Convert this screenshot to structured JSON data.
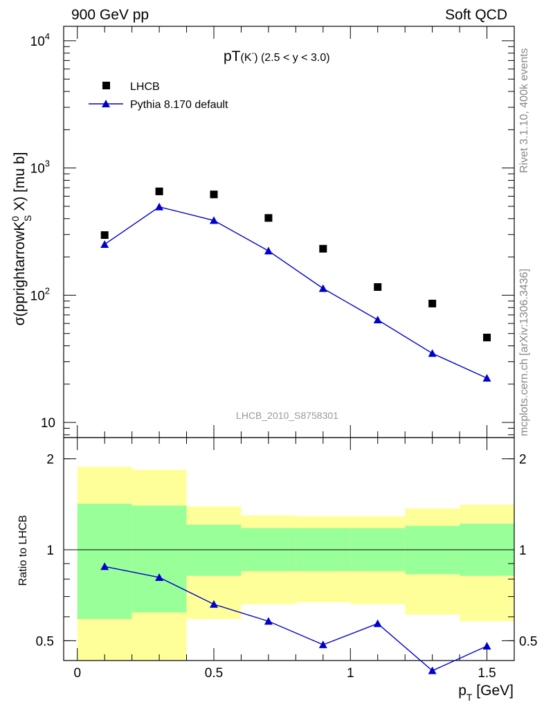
{
  "header": {
    "left": "900 GeV pp",
    "right": "Soft QCD"
  },
  "side_labels": {
    "version": "Rivet 3.1.10,  400k events",
    "source": "mcplots.cern.ch [arXiv:1306.3436]"
  },
  "main_panel": {
    "title_main": "pT",
    "title_particle": "(K",
    "title_particle_sup": "-",
    "title_range": ")  (2.5 < y < 3.0)",
    "ylabel": "σ(pprightarrowK",
    "ylabel_sup": "0",
    "ylabel_sub": "S",
    "ylabel_tail": " X) [mu b]",
    "analysis_id": "LHCB_2010_S8758301",
    "y_ticks": [
      {
        "base": "10",
        "exp": "4"
      },
      {
        "base": "10",
        "exp": "3"
      },
      {
        "base": "10",
        "exp": "2"
      },
      {
        "base": "10",
        "exp": ""
      }
    ]
  },
  "ratio_panel": {
    "ylabel": "Ratio to LHCB",
    "y_ticks": [
      "2",
      "1",
      "0.5"
    ]
  },
  "x_axis": {
    "label_main": "p",
    "label_sub": "T",
    "label_unit": " [GeV]",
    "ticks": [
      "0",
      "0.5",
      "1",
      "1.5"
    ]
  },
  "legend": [
    {
      "label": "LHCB"
    },
    {
      "label": "Pythia 8.170 default"
    }
  ],
  "colors": {
    "data": "#000000",
    "mc": "#0000cc",
    "band_inner": "#99ff99",
    "band_outer": "#ffff99"
  },
  "chart_data": [
    {
      "type": "scatter",
      "yscale": "log",
      "xlim": [
        -0.05,
        1.6
      ],
      "ylim": [
        7.6,
        13000
      ],
      "grid": false,
      "legend_position": "top-left",
      "x": [
        0.1,
        0.3,
        0.5,
        0.7,
        0.9,
        1.1,
        1.3,
        1.5
      ],
      "series": [
        {
          "name": "LHCB",
          "values": [
            297,
            655,
            620,
            405,
            232,
            116,
            86,
            46.5
          ]
        },
        {
          "name": "Pythia 8.170 default",
          "values": [
            251,
            495,
            387,
            223,
            113,
            64,
            34.9,
            22.3
          ]
        }
      ]
    },
    {
      "type": "line",
      "yscale": "log",
      "xlim": [
        -0.05,
        1.6
      ],
      "ylim": [
        0.43,
        2.35
      ],
      "reference_line": 1,
      "x": [
        0.1,
        0.3,
        0.5,
        0.7,
        0.9,
        1.1,
        1.3,
        1.5
      ],
      "series": [
        {
          "name": "Pythia 8.170 default",
          "values": [
            0.88,
            0.81,
            0.66,
            0.58,
            0.485,
            0.57,
            0.398,
            0.48
          ]
        }
      ],
      "bands": {
        "bin_edges": [
          0.0,
          0.2,
          0.4,
          0.6,
          0.8,
          1.0,
          1.2,
          1.4,
          1.6
        ],
        "outer_low": [
          0.4,
          0.4,
          0.59,
          0.66,
          0.67,
          0.66,
          0.61,
          0.58
        ],
        "outer_high": [
          1.88,
          1.84,
          1.39,
          1.3,
          1.29,
          1.29,
          1.37,
          1.41
        ],
        "inner_low": [
          0.59,
          0.62,
          0.82,
          0.85,
          0.85,
          0.85,
          0.83,
          0.82
        ],
        "inner_high": [
          1.42,
          1.4,
          1.21,
          1.18,
          1.18,
          1.18,
          1.2,
          1.22
        ]
      }
    }
  ]
}
